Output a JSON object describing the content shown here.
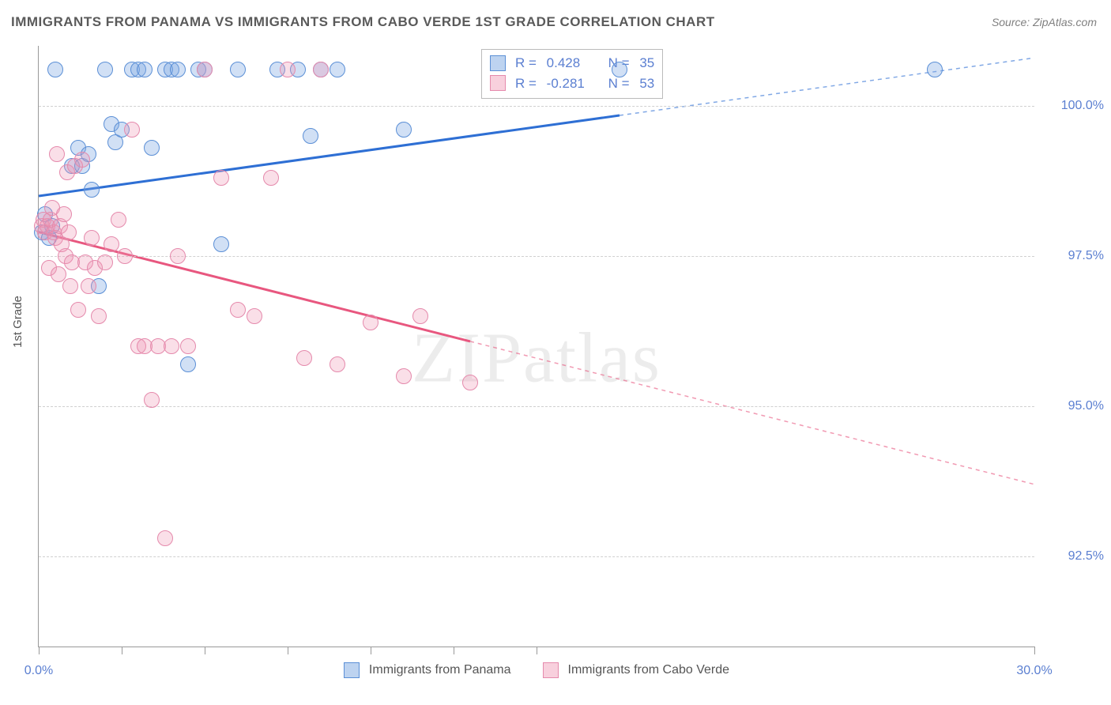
{
  "title": "IMMIGRANTS FROM PANAMA VS IMMIGRANTS FROM CABO VERDE 1ST GRADE CORRELATION CHART",
  "source": "Source: ZipAtlas.com",
  "ylabel": "1st Grade",
  "watermark": "ZIPatlas",
  "chart": {
    "type": "scatter",
    "xlim": [
      0,
      30
    ],
    "ylim": [
      91.0,
      101.0
    ],
    "xtick_label_left": "0.0%",
    "xtick_label_right": "30.0%",
    "xtick_positions": [
      0,
      2.5,
      5,
      7.5,
      10,
      12.5,
      15,
      30
    ],
    "yticks": [
      {
        "v": 92.5,
        "label": "92.5%"
      },
      {
        "v": 95.0,
        "label": "95.0%"
      },
      {
        "v": 97.5,
        "label": "97.5%"
      },
      {
        "v": 100.0,
        "label": "100.0%"
      }
    ],
    "series": [
      {
        "name": "Immigrants from Panama",
        "color_fill": "rgba(123,167,226,0.35)",
        "color_stroke": "#5b8fd6",
        "class": "blue",
        "R": "0.428",
        "N": "35",
        "trend": {
          "x1": 0,
          "y1": 98.5,
          "x2": 30,
          "y2": 100.8,
          "solid_until_x": 17.5,
          "stroke": "#2e6fd4",
          "width": 3
        },
        "points": [
          [
            0.1,
            97.9
          ],
          [
            0.2,
            98.2
          ],
          [
            0.3,
            97.8
          ],
          [
            0.4,
            98.0
          ],
          [
            0.5,
            100.6
          ],
          [
            1.0,
            99.0
          ],
          [
            1.2,
            99.3
          ],
          [
            1.3,
            99.0
          ],
          [
            1.5,
            99.2
          ],
          [
            1.6,
            98.6
          ],
          [
            1.8,
            97.0
          ],
          [
            2.0,
            100.6
          ],
          [
            2.2,
            99.7
          ],
          [
            2.3,
            99.4
          ],
          [
            2.5,
            99.6
          ],
          [
            2.8,
            100.6
          ],
          [
            3.0,
            100.6
          ],
          [
            3.2,
            100.6
          ],
          [
            3.4,
            99.3
          ],
          [
            3.8,
            100.6
          ],
          [
            4.0,
            100.6
          ],
          [
            4.2,
            100.6
          ],
          [
            4.5,
            95.7
          ],
          [
            4.8,
            100.6
          ],
          [
            5.0,
            100.6
          ],
          [
            5.5,
            97.7
          ],
          [
            6.0,
            100.6
          ],
          [
            7.2,
            100.6
          ],
          [
            7.8,
            100.6
          ],
          [
            8.2,
            99.5
          ],
          [
            8.5,
            100.6
          ],
          [
            9.0,
            100.6
          ],
          [
            11.0,
            99.6
          ],
          [
            17.5,
            100.6
          ],
          [
            27.0,
            100.6
          ]
        ]
      },
      {
        "name": "Immigrants from Cabo Verde",
        "color_fill": "rgba(240,150,180,0.3)",
        "color_stroke": "#e58aac",
        "class": "pink",
        "R": "-0.281",
        "N": "53",
        "trend": {
          "x1": 0,
          "y1": 97.9,
          "x2": 30,
          "y2": 93.7,
          "solid_until_x": 13.0,
          "stroke": "#e8577f",
          "width": 3
        },
        "points": [
          [
            0.1,
            98.0
          ],
          [
            0.15,
            98.1
          ],
          [
            0.2,
            97.9
          ],
          [
            0.25,
            98.0
          ],
          [
            0.3,
            97.3
          ],
          [
            0.35,
            98.1
          ],
          [
            0.4,
            98.3
          ],
          [
            0.45,
            97.9
          ],
          [
            0.5,
            97.8
          ],
          [
            0.55,
            99.2
          ],
          [
            0.6,
            97.2
          ],
          [
            0.65,
            98.0
          ],
          [
            0.7,
            97.7
          ],
          [
            0.75,
            98.2
          ],
          [
            0.8,
            97.5
          ],
          [
            0.85,
            98.9
          ],
          [
            0.9,
            97.9
          ],
          [
            0.95,
            97.0
          ],
          [
            1.0,
            97.4
          ],
          [
            1.1,
            99.0
          ],
          [
            1.2,
            96.6
          ],
          [
            1.3,
            99.1
          ],
          [
            1.4,
            97.4
          ],
          [
            1.5,
            97.0
          ],
          [
            1.6,
            97.8
          ],
          [
            1.7,
            97.3
          ],
          [
            1.8,
            96.5
          ],
          [
            2.0,
            97.4
          ],
          [
            2.2,
            97.7
          ],
          [
            2.4,
            98.1
          ],
          [
            2.6,
            97.5
          ],
          [
            2.8,
            99.6
          ],
          [
            3.0,
            96.0
          ],
          [
            3.2,
            96.0
          ],
          [
            3.4,
            95.1
          ],
          [
            3.6,
            96.0
          ],
          [
            3.8,
            92.8
          ],
          [
            4.0,
            96.0
          ],
          [
            4.2,
            97.5
          ],
          [
            4.5,
            96.0
          ],
          [
            5.0,
            100.6
          ],
          [
            5.5,
            98.8
          ],
          [
            6.0,
            96.6
          ],
          [
            6.5,
            96.5
          ],
          [
            7.0,
            98.8
          ],
          [
            7.5,
            100.6
          ],
          [
            8.0,
            95.8
          ],
          [
            8.5,
            100.6
          ],
          [
            9.0,
            95.7
          ],
          [
            10.0,
            96.4
          ],
          [
            11.0,
            95.5
          ],
          [
            11.5,
            96.5
          ],
          [
            13.0,
            95.4
          ]
        ]
      }
    ]
  },
  "legend_top_rows": [
    {
      "class": "blue",
      "r": "0.428",
      "n": "35"
    },
    {
      "class": "pink",
      "r": "-0.281",
      "n": "53"
    }
  ],
  "legend_bottom": [
    {
      "class": "blue",
      "label": "Immigrants from Panama"
    },
    {
      "class": "pink",
      "label": "Immigrants from Cabo Verde"
    }
  ]
}
